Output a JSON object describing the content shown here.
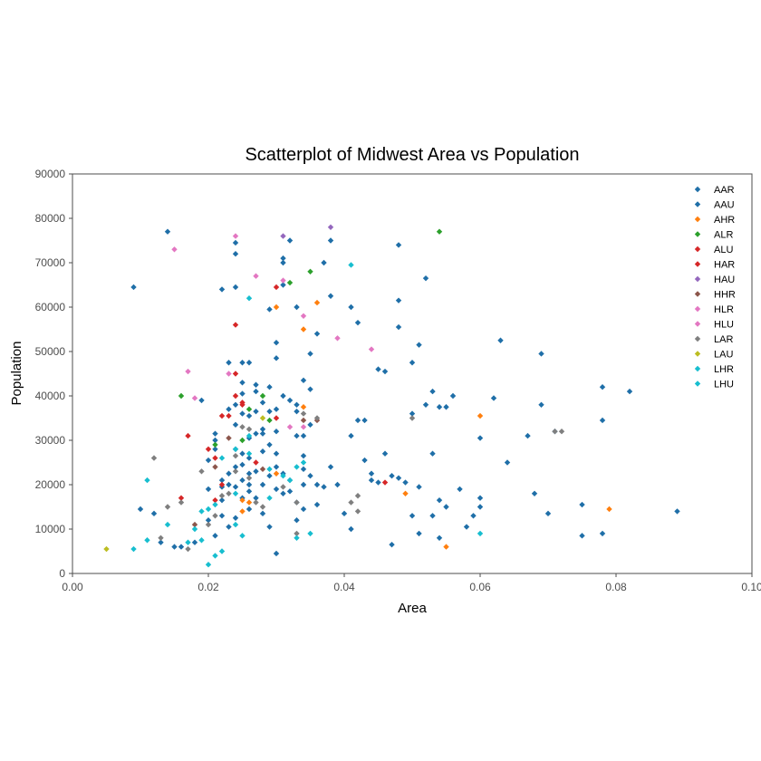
{
  "chart_data": {
    "type": "scatter",
    "title": "Scatterplot of Midwest Area vs Population",
    "xlabel": "Area",
    "ylabel": "Population",
    "xlim": [
      0,
      0.1
    ],
    "ylim": [
      0,
      90000
    ],
    "x_ticks": [
      "0.00",
      "0.02",
      "0.04",
      "0.06",
      "0.08",
      "0.10"
    ],
    "y_ticks": [
      "0",
      "10000",
      "20000",
      "30000",
      "40000",
      "50000",
      "60000",
      "70000",
      "80000",
      "90000"
    ],
    "grid": false,
    "legend_position": "top-right",
    "series": [
      {
        "name": "AAR",
        "color": "#1f6fa8",
        "points": [
          [
            0.009,
            64500
          ],
          [
            0.014,
            77000
          ],
          [
            0.01,
            14500
          ],
          [
            0.012,
            13500
          ],
          [
            0.013,
            7000
          ],
          [
            0.015,
            6000
          ],
          [
            0.019,
            39000
          ],
          [
            0.02,
            19000
          ],
          [
            0.021,
            28000
          ],
          [
            0.022,
            64000
          ],
          [
            0.023,
            47500
          ],
          [
            0.024,
            74500
          ],
          [
            0.024,
            72000
          ],
          [
            0.024,
            64500
          ],
          [
            0.025,
            47500
          ],
          [
            0.025,
            43000
          ],
          [
            0.026,
            47500
          ],
          [
            0.027,
            42500
          ],
          [
            0.028,
            31500
          ],
          [
            0.029,
            59500
          ],
          [
            0.03,
            52000
          ],
          [
            0.03,
            48500
          ],
          [
            0.031,
            71000
          ],
          [
            0.032,
            75000
          ],
          [
            0.033,
            60000
          ],
          [
            0.034,
            43500
          ],
          [
            0.035,
            41500
          ],
          [
            0.035,
            49500
          ],
          [
            0.036,
            54000
          ],
          [
            0.037,
            70000
          ],
          [
            0.038,
            62500
          ],
          [
            0.038,
            75000
          ],
          [
            0.041,
            60000
          ],
          [
            0.042,
            56500
          ],
          [
            0.042,
            34500
          ],
          [
            0.043,
            34500
          ],
          [
            0.045,
            46000
          ],
          [
            0.046,
            45500
          ],
          [
            0.048,
            74000
          ],
          [
            0.048,
            61500
          ],
          [
            0.048,
            55500
          ],
          [
            0.05,
            47500
          ],
          [
            0.051,
            51500
          ],
          [
            0.052,
            66500
          ],
          [
            0.052,
            38000
          ],
          [
            0.053,
            41000
          ],
          [
            0.054,
            37500
          ],
          [
            0.055,
            37500
          ],
          [
            0.056,
            40000
          ],
          [
            0.058,
            10500
          ],
          [
            0.059,
            13000
          ],
          [
            0.06,
            30500
          ],
          [
            0.06,
            17000
          ],
          [
            0.062,
            39500
          ],
          [
            0.063,
            52500
          ],
          [
            0.064,
            25000
          ],
          [
            0.067,
            31000
          ],
          [
            0.068,
            18000
          ],
          [
            0.069,
            49500
          ],
          [
            0.069,
            38000
          ],
          [
            0.07,
            13500
          ],
          [
            0.071,
            32000
          ],
          [
            0.075,
            15500
          ],
          [
            0.075,
            8500
          ],
          [
            0.078,
            42000
          ],
          [
            0.078,
            34500
          ],
          [
            0.078,
            9000
          ],
          [
            0.082,
            41000
          ],
          [
            0.089,
            14000
          ],
          [
            0.04,
            13500
          ],
          [
            0.041,
            10000
          ],
          [
            0.044,
            22500
          ],
          [
            0.045,
            20500
          ],
          [
            0.047,
            6500
          ],
          [
            0.048,
            21500
          ],
          [
            0.05,
            36000
          ],
          [
            0.05,
            13000
          ],
          [
            0.051,
            9000
          ],
          [
            0.053,
            27000
          ],
          [
            0.053,
            13000
          ],
          [
            0.054,
            16500
          ],
          [
            0.054,
            8000
          ],
          [
            0.055,
            15000
          ],
          [
            0.057,
            19000
          ],
          [
            0.06,
            15000
          ],
          [
            0.03,
            4500
          ]
        ]
      },
      {
        "name": "AAU",
        "color": "#1f6fa8",
        "points": [
          [
            0.016,
            6000
          ],
          [
            0.018,
            7000
          ],
          [
            0.02,
            12000
          ],
          [
            0.02,
            25500
          ],
          [
            0.021,
            8500
          ],
          [
            0.021,
            30000
          ],
          [
            0.021,
            31500
          ],
          [
            0.022,
            21000
          ],
          [
            0.022,
            13000
          ],
          [
            0.022,
            16500
          ],
          [
            0.022,
            19500
          ],
          [
            0.023,
            10500
          ],
          [
            0.023,
            22500
          ],
          [
            0.023,
            37000
          ],
          [
            0.023,
            20000
          ],
          [
            0.024,
            24000
          ],
          [
            0.024,
            12500
          ],
          [
            0.024,
            28000
          ],
          [
            0.024,
            33500
          ],
          [
            0.024,
            19500
          ],
          [
            0.024,
            38000
          ],
          [
            0.025,
            21000
          ],
          [
            0.025,
            24500
          ],
          [
            0.025,
            17000
          ],
          [
            0.025,
            27000
          ],
          [
            0.025,
            36000
          ],
          [
            0.025,
            40500
          ],
          [
            0.026,
            18500
          ],
          [
            0.026,
            22500
          ],
          [
            0.026,
            26000
          ],
          [
            0.026,
            30500
          ],
          [
            0.026,
            35500
          ],
          [
            0.026,
            14500
          ],
          [
            0.026,
            20000
          ],
          [
            0.027,
            23000
          ],
          [
            0.027,
            31500
          ],
          [
            0.027,
            36500
          ],
          [
            0.027,
            41000
          ],
          [
            0.027,
            17000
          ],
          [
            0.028,
            27500
          ],
          [
            0.028,
            32500
          ],
          [
            0.028,
            20000
          ],
          [
            0.028,
            38500
          ],
          [
            0.028,
            13500
          ],
          [
            0.029,
            22000
          ],
          [
            0.029,
            29000
          ],
          [
            0.029,
            10500
          ],
          [
            0.029,
            36500
          ],
          [
            0.029,
            42000
          ],
          [
            0.03,
            19000
          ],
          [
            0.03,
            27000
          ],
          [
            0.03,
            32000
          ],
          [
            0.03,
            37000
          ],
          [
            0.03,
            24000
          ],
          [
            0.031,
            18000
          ],
          [
            0.031,
            22500
          ],
          [
            0.031,
            40000
          ],
          [
            0.031,
            65000
          ],
          [
            0.031,
            70000
          ],
          [
            0.032,
            21000
          ],
          [
            0.032,
            39000
          ],
          [
            0.032,
            18500
          ],
          [
            0.033,
            31000
          ],
          [
            0.033,
            36500
          ],
          [
            0.033,
            12000
          ],
          [
            0.033,
            16000
          ],
          [
            0.033,
            38000
          ],
          [
            0.034,
            23500
          ],
          [
            0.034,
            31000
          ],
          [
            0.034,
            26500
          ],
          [
            0.034,
            20000
          ],
          [
            0.034,
            14500
          ],
          [
            0.035,
            22000
          ],
          [
            0.035,
            33500
          ],
          [
            0.036,
            20000
          ],
          [
            0.036,
            15500
          ],
          [
            0.037,
            19500
          ],
          [
            0.038,
            24000
          ],
          [
            0.039,
            20000
          ],
          [
            0.041,
            31000
          ],
          [
            0.043,
            25500
          ],
          [
            0.044,
            21000
          ],
          [
            0.046,
            27000
          ],
          [
            0.047,
            22000
          ],
          [
            0.049,
            20500
          ],
          [
            0.051,
            19500
          ]
        ]
      },
      {
        "name": "AHR",
        "color": "#ff7f0e",
        "points": [
          [
            0.025,
            14000
          ],
          [
            0.025,
            16500
          ],
          [
            0.026,
            16000
          ],
          [
            0.03,
            60000
          ],
          [
            0.03,
            22500
          ],
          [
            0.034,
            55000
          ],
          [
            0.034,
            37500
          ],
          [
            0.036,
            61000
          ],
          [
            0.049,
            18000
          ],
          [
            0.055,
            6000
          ],
          [
            0.06,
            35500
          ],
          [
            0.079,
            14500
          ]
        ]
      },
      {
        "name": "ALR",
        "color": "#2ca02c",
        "points": [
          [
            0.016,
            40000
          ],
          [
            0.021,
            29000
          ],
          [
            0.025,
            30000
          ],
          [
            0.026,
            37000
          ],
          [
            0.028,
            40000
          ],
          [
            0.029,
            34500
          ],
          [
            0.032,
            65500
          ],
          [
            0.035,
            68000
          ],
          [
            0.054,
            77000
          ]
        ]
      },
      {
        "name": "ALU",
        "color": "#d62728",
        "points": [
          [
            0.016,
            17000
          ],
          [
            0.017,
            31000
          ],
          [
            0.02,
            28000
          ],
          [
            0.021,
            16500
          ],
          [
            0.021,
            26000
          ],
          [
            0.022,
            35500
          ],
          [
            0.024,
            40000
          ],
          [
            0.024,
            45000
          ],
          [
            0.025,
            38500
          ],
          [
            0.027,
            25000
          ],
          [
            0.03,
            64500
          ]
        ]
      },
      {
        "name": "HAR",
        "color": "#d62728",
        "points": [
          [
            0.022,
            20000
          ],
          [
            0.023,
            35500
          ],
          [
            0.024,
            56000
          ],
          [
            0.025,
            38000
          ],
          [
            0.03,
            35000
          ],
          [
            0.046,
            20500
          ]
        ]
      },
      {
        "name": "HAU",
        "color": "#9467bd",
        "points": [
          [
            0.031,
            76000
          ],
          [
            0.038,
            78000
          ]
        ]
      },
      {
        "name": "HHR",
        "color": "#8c564b",
        "points": [
          [
            0.018,
            11000
          ],
          [
            0.021,
            24000
          ],
          [
            0.023,
            30500
          ],
          [
            0.028,
            23500
          ],
          [
            0.034,
            34500
          ],
          [
            0.036,
            34500
          ]
        ]
      },
      {
        "name": "HLR",
        "color": "#e377c2",
        "points": [
          [
            0.015,
            73000
          ],
          [
            0.017,
            45500
          ],
          [
            0.018,
            39500
          ],
          [
            0.024,
            76000
          ],
          [
            0.027,
            67000
          ],
          [
            0.031,
            66000
          ],
          [
            0.034,
            58000
          ],
          [
            0.044,
            50500
          ]
        ]
      },
      {
        "name": "HLU",
        "color": "#e377c2",
        "points": [
          [
            0.023,
            45000
          ],
          [
            0.032,
            33000
          ],
          [
            0.034,
            33000
          ],
          [
            0.039,
            53000
          ]
        ]
      },
      {
        "name": "LAR",
        "color": "#7f7f7f",
        "points": [
          [
            0.012,
            26000
          ],
          [
            0.013,
            8000
          ],
          [
            0.014,
            15000
          ],
          [
            0.016,
            16000
          ],
          [
            0.017,
            5500
          ],
          [
            0.019,
            23000
          ],
          [
            0.02,
            11000
          ],
          [
            0.021,
            13000
          ],
          [
            0.022,
            17500
          ],
          [
            0.023,
            18000
          ],
          [
            0.024,
            26500
          ],
          [
            0.024,
            23000
          ],
          [
            0.025,
            33000
          ],
          [
            0.026,
            21500
          ],
          [
            0.026,
            32500
          ],
          [
            0.027,
            16000
          ],
          [
            0.028,
            15000
          ],
          [
            0.031,
            19500
          ],
          [
            0.033,
            9000
          ],
          [
            0.033,
            16000
          ],
          [
            0.034,
            36000
          ],
          [
            0.036,
            35000
          ],
          [
            0.041,
            16000
          ],
          [
            0.042,
            17500
          ],
          [
            0.042,
            14000
          ],
          [
            0.05,
            35000
          ],
          [
            0.071,
            32000
          ],
          [
            0.072,
            32000
          ]
        ]
      },
      {
        "name": "LAU",
        "color": "#bcbd22",
        "points": [
          [
            0.005,
            5500
          ],
          [
            0.028,
            35000
          ]
        ]
      },
      {
        "name": "LHR",
        "color": "#17becf",
        "points": [
          [
            0.009,
            5500
          ],
          [
            0.011,
            7500
          ],
          [
            0.014,
            11000
          ],
          [
            0.017,
            7000
          ],
          [
            0.018,
            10000
          ],
          [
            0.019,
            7500
          ],
          [
            0.02,
            2000
          ],
          [
            0.02,
            14500
          ],
          [
            0.021,
            4000
          ],
          [
            0.022,
            5000
          ],
          [
            0.022,
            26000
          ],
          [
            0.024,
            11000
          ],
          [
            0.024,
            18000
          ],
          [
            0.025,
            8500
          ],
          [
            0.026,
            62000
          ],
          [
            0.026,
            27000
          ],
          [
            0.029,
            17000
          ],
          [
            0.033,
            24000
          ],
          [
            0.035,
            9000
          ],
          [
            0.041,
            69500
          ],
          [
            0.06,
            9000
          ]
        ]
      },
      {
        "name": "LHU",
        "color": "#17becf",
        "points": [
          [
            0.011,
            21000
          ],
          [
            0.019,
            14000
          ],
          [
            0.021,
            15500
          ],
          [
            0.024,
            28000
          ],
          [
            0.026,
            31000
          ],
          [
            0.029,
            23500
          ],
          [
            0.031,
            22000
          ],
          [
            0.032,
            21000
          ],
          [
            0.033,
            8000
          ],
          [
            0.034,
            25000
          ]
        ]
      }
    ]
  }
}
